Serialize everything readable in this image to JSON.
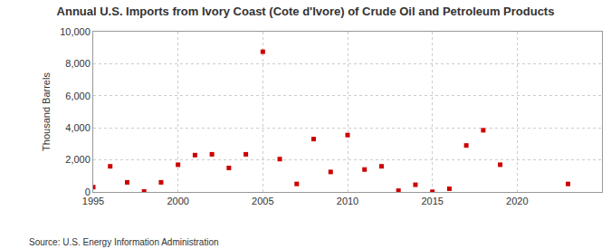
{
  "chart_data": {
    "type": "scatter",
    "title": "Annual U.S. Imports from Ivory Coast (Cote d'Ivore) of Crude Oil and Petroleum Products",
    "y_label": "Thousand Barrels",
    "annotations": [
      "Source: U.S. Energy Information Administration"
    ],
    "x": [
      1995,
      1996,
      1997,
      1998,
      1999,
      2000,
      2001,
      2002,
      2003,
      2004,
      2005,
      2006,
      2007,
      2008,
      2009,
      2010,
      2011,
      2012,
      2013,
      2014,
      2015,
      2016,
      2017,
      2018,
      2019,
      2023
    ],
    "values": [
      300,
      1600,
      600,
      30,
      600,
      1700,
      2300,
      2350,
      1500,
      2350,
      8750,
      2050,
      500,
      3300,
      1250,
      3550,
      1400,
      1600,
      80,
      450,
      10,
      200,
      2900,
      3850,
      1700,
      500
    ],
    "color": "#cc0000",
    "marker": "square",
    "xlim": [
      1995,
      2025
    ],
    "xticks": [
      1995,
      2000,
      2005,
      2010,
      2015,
      2020
    ],
    "ylim": [
      0,
      10000
    ],
    "yticks": [
      0,
      {
        "value": 2000,
        "label": "2,000"
      },
      {
        "value": 4000,
        "label": "4,000"
      },
      {
        "value": 6000,
        "label": "6,000"
      },
      {
        "value": 8000,
        "label": "8,000"
      },
      {
        "value": 10000,
        "label": "10,000"
      }
    ],
    "grid": true
  }
}
